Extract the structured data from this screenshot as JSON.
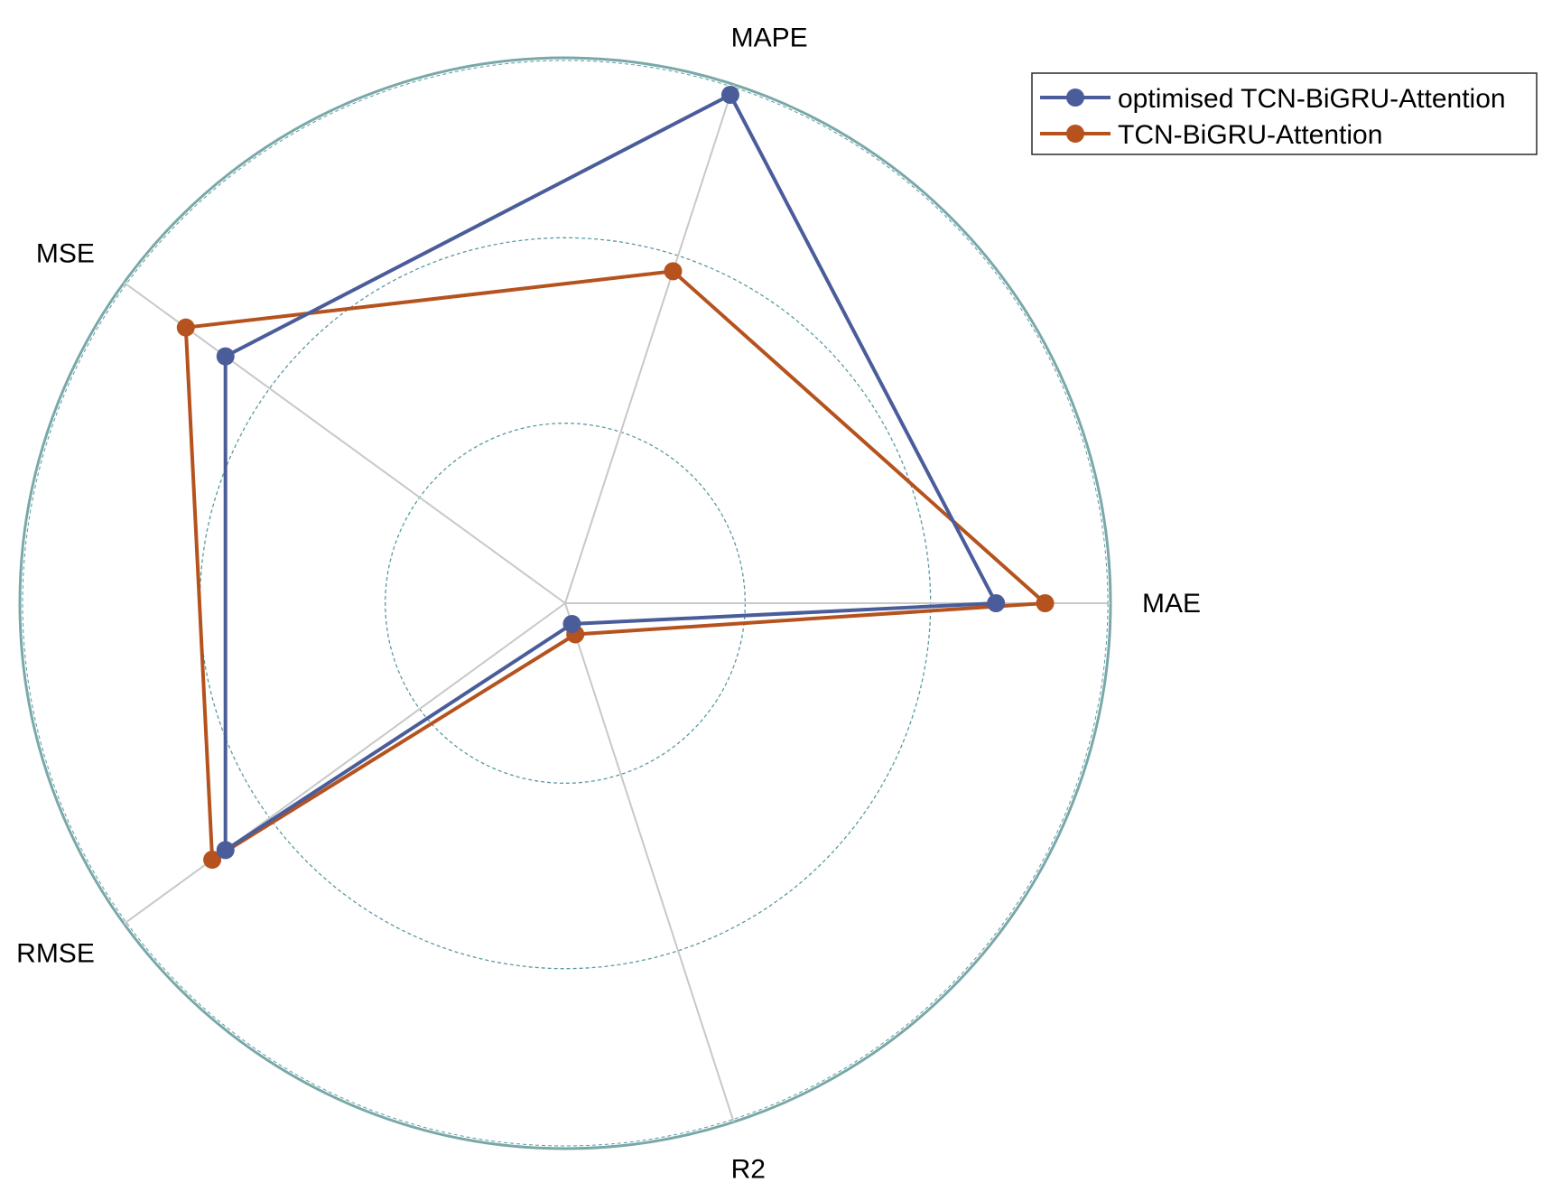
{
  "chart_data": {
    "type": "radar",
    "axes": [
      "MAE",
      "MAPE",
      "MSE",
      "RMSE",
      "R2"
    ],
    "rlim": [
      0,
      1
    ],
    "rings": [
      0.33,
      0.67,
      1.0
    ],
    "grid": true,
    "legend_position": "top-right",
    "series": [
      {
        "name": "optimised TCN-BiGRU-Attention",
        "color": "#4a5d9a",
        "values": [
          0.79,
          0.98,
          0.77,
          0.77,
          0.04
        ]
      },
      {
        "name": "TCN-BiGRU-Attention",
        "color": "#b5521e",
        "values": [
          0.88,
          0.64,
          0.86,
          0.8,
          0.06
        ]
      }
    ],
    "colors": {
      "axis": "#c8c8c8",
      "ring": "#5a9aa0",
      "outer_ring": "#7aa8a8"
    }
  }
}
